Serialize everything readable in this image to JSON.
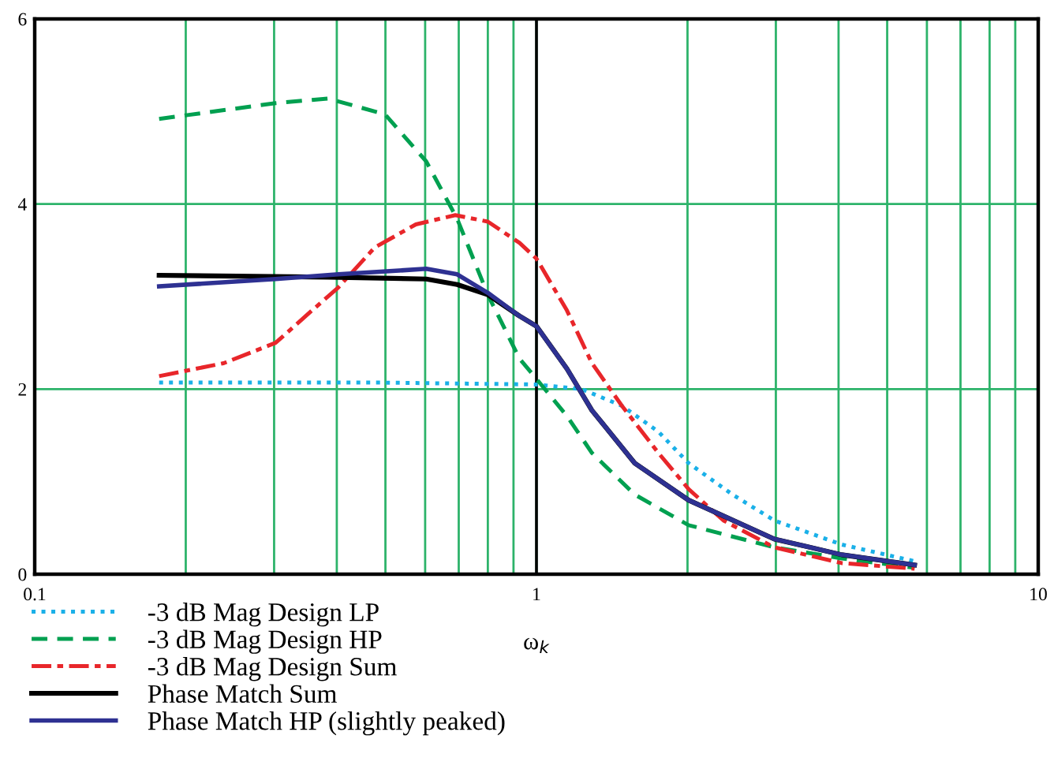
{
  "chart_data": {
    "type": "line",
    "xlabel": "ω$_{k}$",
    "log": "x",
    "xlim": [
      0.1,
      10
    ],
    "ylim": [
      0,
      6
    ],
    "xticks": [
      0.1,
      {
        "value": 0.2,
        "label": null
      },
      {
        "value": 0.3,
        "label": null
      },
      {
        "value": 0.4,
        "label": null
      },
      {
        "value": 0.5,
        "label": null
      },
      {
        "value": 0.6,
        "label": null
      },
      {
        "value": 0.7,
        "label": null
      },
      {
        "value": 0.8,
        "label": null
      },
      {
        "value": 0.9,
        "label": null
      },
      1,
      {
        "value": 2,
        "label": null
      },
      {
        "value": 3,
        "label": null
      },
      {
        "value": 4,
        "label": null
      },
      {
        "value": 5,
        "label": null
      },
      {
        "value": 6,
        "label": null
      },
      {
        "value": 7,
        "label": null
      },
      {
        "value": 8,
        "label": null
      },
      {
        "value": 9,
        "label": null
      },
      10
    ],
    "yticks": [
      0,
      2,
      4,
      6
    ],
    "grid": true,
    "legend": "bottom",
    "marker": "none",
    "ref_lines": [
      {
        "axis": "x",
        "value": 1,
        "color": "#000000"
      }
    ],
    "series": [
      {
        "name": "-3 dB Mag Design LP",
        "color": "#1ab0e8",
        "line_style": "dotted",
        "x": [
          0.177,
          0.5,
          1.0,
          1.23,
          1.48,
          1.75,
          2.01,
          2.46,
          2.98,
          4.06,
          5.67
        ],
        "values": [
          2.07,
          2.07,
          2.05,
          2.0,
          1.82,
          1.54,
          1.2,
          0.86,
          0.58,
          0.32,
          0.14
        ]
      },
      {
        "name": "-3 dB Mag Design HP",
        "color": "#00a050",
        "line_style": "dashed",
        "x": [
          0.177,
          0.302,
          0.384,
          0.499,
          0.603,
          0.695,
          0.8,
          0.925,
          1.0,
          1.15,
          1.29,
          1.57,
          2.01,
          2.98,
          4.06,
          5.67
        ],
        "values": [
          4.92,
          5.09,
          5.14,
          4.97,
          4.46,
          3.84,
          3.02,
          2.33,
          2.11,
          1.71,
          1.31,
          0.86,
          0.53,
          0.29,
          0.17,
          0.07
        ]
      },
      {
        "name": "-3 dB Mag Design Sum",
        "color": "#e8262a",
        "line_style": "dashdot",
        "x": [
          0.177,
          0.238,
          0.302,
          0.357,
          0.403,
          0.476,
          0.575,
          0.689,
          0.8,
          0.925,
          1.0,
          1.15,
          1.29,
          1.48,
          1.75,
          2.01,
          2.36,
          2.98,
          4.06,
          5.67
        ],
        "values": [
          2.14,
          2.28,
          2.5,
          2.85,
          3.1,
          3.53,
          3.78,
          3.88,
          3.81,
          3.58,
          3.41,
          2.85,
          2.28,
          1.82,
          1.31,
          0.92,
          0.58,
          0.29,
          0.12,
          0.06
        ]
      },
      {
        "name": "Phase Match Sum",
        "color": "#000000",
        "line_style": "solid",
        "x": [
          0.177,
          0.384,
          0.603,
          0.695,
          0.8,
          0.925,
          1.0,
          1.15,
          1.29,
          1.57,
          2.01,
          2.98,
          4.06,
          5.67
        ],
        "values": [
          3.23,
          3.21,
          3.19,
          3.13,
          3.02,
          2.79,
          2.68,
          2.22,
          1.77,
          1.2,
          0.8,
          0.38,
          0.21,
          0.1
        ]
      },
      {
        "name": "Phase Match HP (slightly peaked)",
        "color": "#2e3192",
        "line_style": "solid",
        "x": [
          0.177,
          0.302,
          0.403,
          0.603,
          0.695,
          0.8,
          0.925,
          1.0,
          1.15,
          1.29,
          1.57,
          2.01,
          2.98,
          4.06,
          5.67
        ],
        "values": [
          3.11,
          3.19,
          3.24,
          3.3,
          3.24,
          3.04,
          2.79,
          2.68,
          2.22,
          1.77,
          1.2,
          0.8,
          0.38,
          0.21,
          0.1
        ]
      }
    ]
  }
}
